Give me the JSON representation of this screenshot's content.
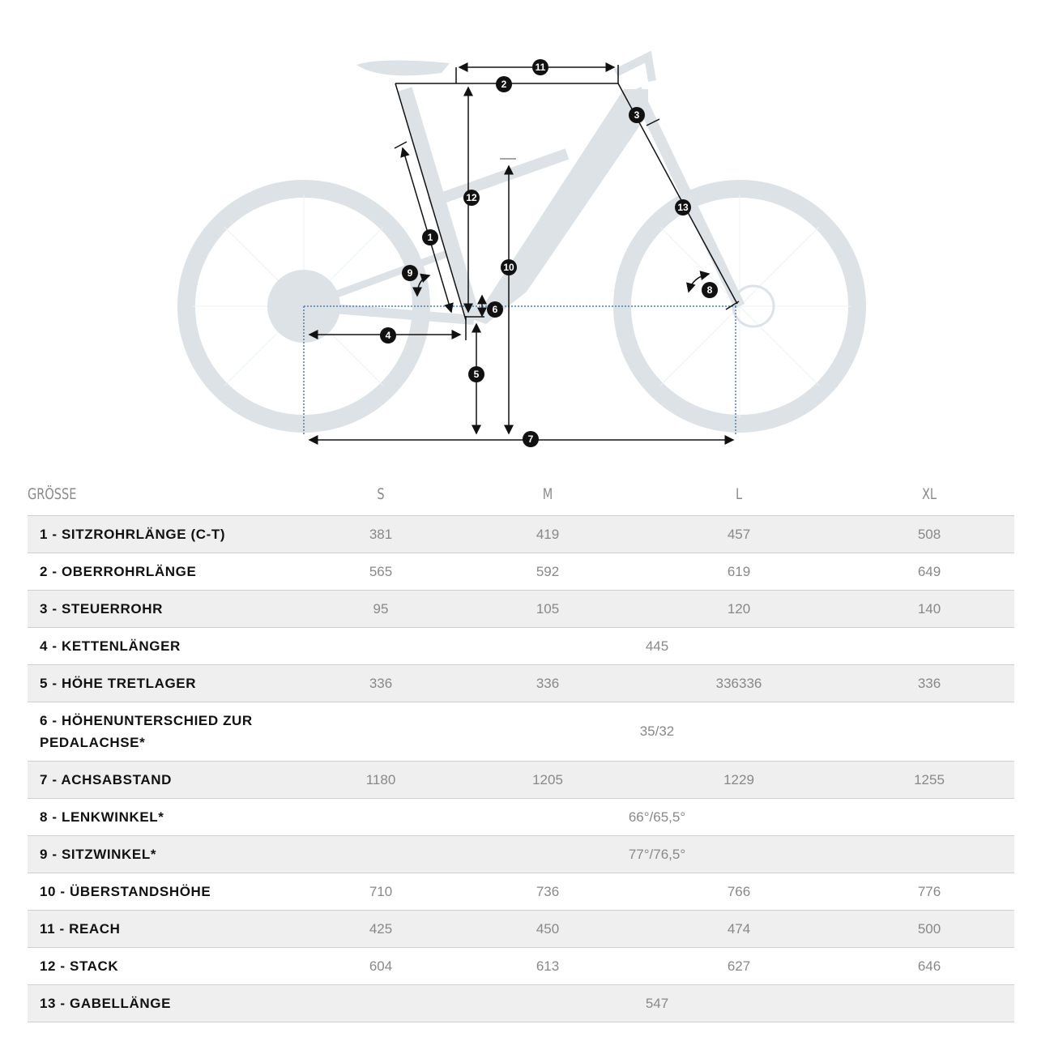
{
  "diagram": {
    "markers": [
      "1",
      "2",
      "3",
      "4",
      "5",
      "6",
      "7",
      "8",
      "9",
      "10",
      "11",
      "12",
      "13"
    ]
  },
  "table": {
    "header": {
      "label": "GRÖSSE",
      "sizes": [
        "S",
        "M",
        "L",
        "XL"
      ]
    },
    "rows": [
      {
        "label": "1 - SITZROHRLÄNGE (C-T)",
        "values": [
          "381",
          "419",
          "457",
          "508"
        ]
      },
      {
        "label": "2 - OBERROHRLÄNGE",
        "values": [
          "565",
          "592",
          "619",
          "649"
        ]
      },
      {
        "label": "3 - STEUERROHR",
        "values": [
          "95",
          "105",
          "120",
          "140"
        ]
      },
      {
        "label": "4 - KETTENLÄNGER",
        "value": "445"
      },
      {
        "label": "5 - HÖHE TRETLAGER",
        "values": [
          "336",
          "336",
          "336336",
          "336"
        ]
      },
      {
        "label": "6 - HÖHENUNTERSCHIED ZUR PEDALACHSE*",
        "value": "35/32"
      },
      {
        "label": "7 - ACHSABSTAND",
        "values": [
          "1180",
          "1205",
          "1229",
          "1255"
        ]
      },
      {
        "label": "8 - LENKWINKEL*",
        "value": "66°/65,5°"
      },
      {
        "label": "9 - SITZWINKEL*",
        "value": "77°/76,5°"
      },
      {
        "label": "10 - ÜBERSTANDSHÖHE",
        "values": [
          "710",
          "736",
          "766",
          "776"
        ]
      },
      {
        "label": "11 - REACH",
        "values": [
          "425",
          "450",
          "474",
          "500"
        ]
      },
      {
        "label": "12 - STACK",
        "values": [
          "604",
          "613",
          "627",
          "646"
        ]
      },
      {
        "label": "13 - GABELLÄNGE",
        "value": "547"
      }
    ]
  },
  "colors": {
    "bike": "#dde2e7",
    "lines": "#111111",
    "dotted": "#4a7fb5",
    "row_alt": "#efefef"
  }
}
